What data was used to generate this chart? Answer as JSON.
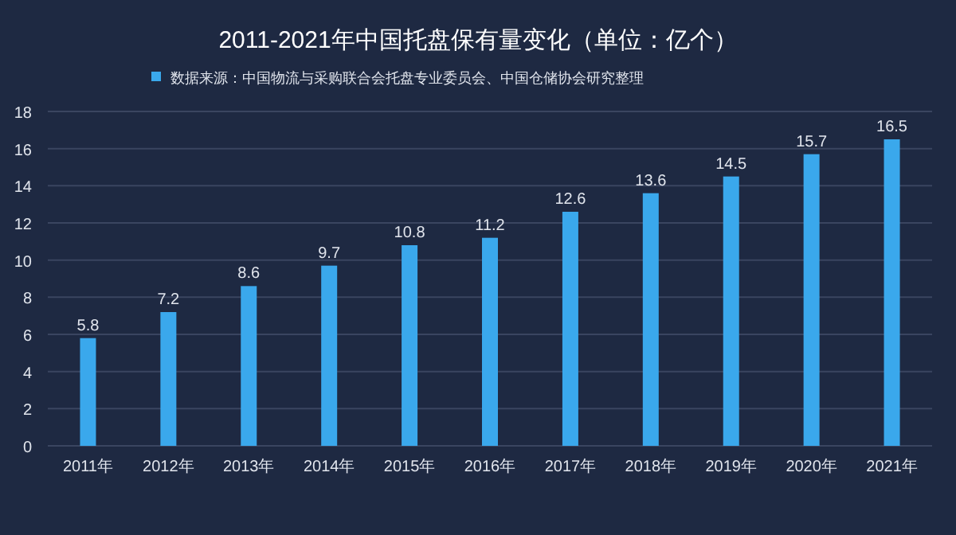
{
  "chart_data": {
    "type": "bar",
    "title": "2011-2021年中国托盘保有量变化（单位：亿个）",
    "categories": [
      "2011年",
      "2012年",
      "2013年",
      "2014年",
      "2015年",
      "2016年",
      "2017年",
      "2018年",
      "2019年",
      "2020年",
      "2021年"
    ],
    "series": [
      {
        "name": "数据来源：中国物流与采购联合会托盘专业委员会、中国仓储协会研究整理",
        "color": "#3aa8ec",
        "values": [
          5.8,
          7.2,
          8.6,
          9.7,
          10.8,
          11.2,
          12.6,
          13.6,
          14.5,
          15.7,
          16.5
        ]
      }
    ],
    "ylim": [
      0,
      18
    ],
    "yticks": [
      0,
      2,
      4,
      6,
      8,
      10,
      12,
      14,
      16,
      18
    ],
    "grid": "y",
    "legend": "top left",
    "data_labels": true
  }
}
